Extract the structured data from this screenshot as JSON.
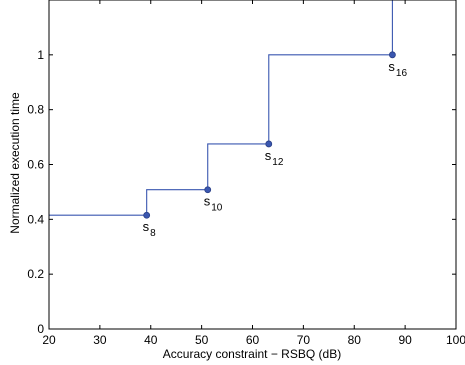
{
  "chart_data": {
    "type": "line",
    "xlabel": "Accuracy constraint − RSBQ (dB)",
    "ylabel": "Normalized execution time",
    "xlim": [
      20,
      100
    ],
    "ylim": [
      0,
      1.2
    ],
    "xticks": [
      20,
      30,
      40,
      50,
      60,
      70,
      80,
      90,
      100
    ],
    "yticks": [
      0,
      0.2,
      0.4,
      0.6,
      0.8,
      1
    ],
    "xtick_labels": [
      "20",
      "30",
      "40",
      "50",
      "60",
      "70",
      "80",
      "90",
      "100"
    ],
    "ytick_labels": [
      "0",
      "0.2",
      "0.4",
      "0.6",
      "0.8",
      "1"
    ],
    "grid": false,
    "series": [
      {
        "color": "#3a57b0",
        "step": [
          {
            "x": 20,
            "y": 0.415
          },
          {
            "x": 39.2,
            "y": 0.415
          },
          {
            "x": 39.2,
            "y": 0.508
          },
          {
            "x": 51.2,
            "y": 0.508
          },
          {
            "x": 51.2,
            "y": 0.675
          },
          {
            "x": 63.2,
            "y": 0.675
          },
          {
            "x": 63.2,
            "y": 1.0
          },
          {
            "x": 87.5,
            "y": 1.0
          },
          {
            "x": 87.5,
            "y": 1.2
          }
        ]
      }
    ],
    "points": [
      {
        "x": 39.2,
        "y": 0.415,
        "label": "s",
        "sub": "8"
      },
      {
        "x": 51.2,
        "y": 0.508,
        "label": "s",
        "sub": "10"
      },
      {
        "x": 63.2,
        "y": 0.675,
        "label": "s",
        "sub": "12"
      },
      {
        "x": 87.5,
        "y": 1.0,
        "label": "s",
        "sub": "16"
      }
    ]
  }
}
